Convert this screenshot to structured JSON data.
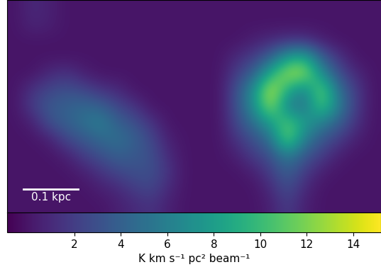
{
  "chart_data": {
    "type": "heatmap",
    "xlim": [
      0,
      0.684
    ],
    "ylim": [
      0,
      0.39
    ],
    "tick_labels": false,
    "scale_bar": {
      "label": "0.1 kpc",
      "length": 0.1,
      "color": "white"
    },
    "cells": [
      [
        0,
        1.0,
        0.5,
        0,
        0,
        0,
        0,
        0,
        0,
        0,
        0,
        0,
        0,
        0,
        0,
        0,
        0,
        0,
        0,
        0,
        0,
        0
      ],
      [
        0,
        0.8,
        0.5,
        0,
        0,
        0,
        0,
        0,
        0,
        0,
        0,
        0,
        0,
        0,
        0,
        0,
        0,
        0,
        0,
        0,
        0,
        0
      ],
      [
        0,
        0,
        0,
        0,
        0,
        0,
        0,
        0,
        0,
        0,
        0,
        0,
        0,
        0,
        0.5,
        1,
        1.5,
        1.5,
        0.5,
        0,
        0,
        0
      ],
      [
        0,
        0,
        0,
        0,
        0,
        0,
        0,
        0,
        0,
        0,
        0,
        0,
        0,
        1,
        2,
        4,
        8,
        9,
        4,
        1.5,
        0,
        0
      ],
      [
        0,
        0,
        1.0,
        1.5,
        0.5,
        0,
        0,
        0,
        0,
        0,
        0,
        0,
        0,
        2,
        4,
        9,
        13,
        13,
        7,
        3,
        1,
        0
      ],
      [
        0,
        1.5,
        2.5,
        3,
        2.5,
        1.5,
        1,
        0,
        0,
        0,
        0,
        0,
        0,
        3,
        7,
        14,
        9,
        6,
        12,
        5,
        2,
        0
      ],
      [
        0,
        2,
        3.5,
        4,
        4.5,
        4,
        2.5,
        1.5,
        0,
        0,
        0,
        0,
        0,
        3,
        7,
        13,
        6,
        5,
        11,
        6,
        2,
        0
      ],
      [
        0,
        0.5,
        3,
        4,
        5,
        6,
        4,
        3,
        1.5,
        0,
        0,
        0,
        0,
        2.5,
        5,
        8,
        11,
        8,
        6,
        4,
        1.5,
        0
      ],
      [
        0,
        0,
        0.5,
        2.5,
        3.5,
        4.5,
        5,
        4,
        2.5,
        0.5,
        0,
        0,
        0,
        1.5,
        3,
        5,
        12,
        6,
        3.5,
        2,
        0.5,
        0
      ],
      [
        0,
        0,
        0,
        0.5,
        2,
        3,
        4,
        3.5,
        3,
        1,
        0,
        0,
        0,
        0.5,
        2,
        3,
        6,
        3.5,
        2,
        0.5,
        0,
        0
      ],
      [
        0,
        0,
        0,
        0,
        0.5,
        1.5,
        2.5,
        3,
        3,
        1.5,
        0,
        0,
        0,
        0,
        0.5,
        2,
        4,
        2,
        0.5,
        0,
        0,
        0
      ],
      [
        0,
        0,
        0,
        0,
        0,
        0.5,
        1,
        2,
        2.5,
        1,
        0,
        0,
        0,
        0,
        0,
        1,
        3,
        1,
        0,
        0,
        0,
        0
      ],
      [
        0,
        0,
        0,
        0,
        0,
        0,
        0.5,
        1,
        1.5,
        0.5,
        0,
        0,
        0,
        0,
        0,
        0.5,
        2,
        0.5,
        0,
        0,
        0,
        0
      ]
    ],
    "colorbar": {
      "label": "K km s⁻¹ pc² beam⁻¹",
      "range": [
        -0.9,
        15.2
      ],
      "ticks": [
        2,
        4,
        6,
        8,
        10,
        12,
        14
      ]
    }
  }
}
